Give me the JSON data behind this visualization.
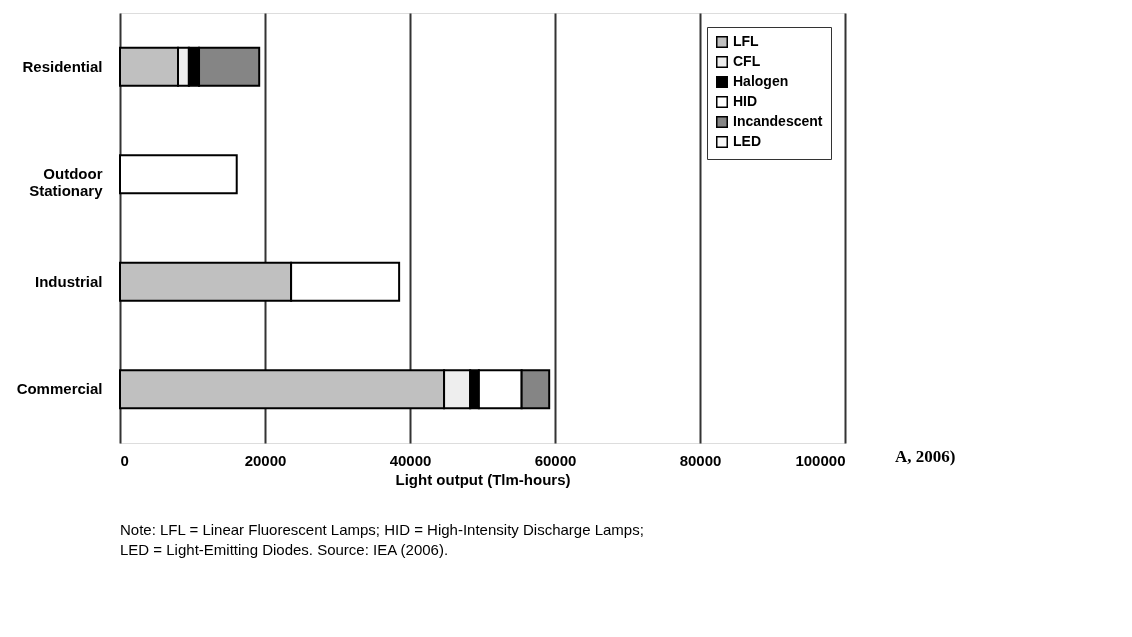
{
  "chart_data": {
    "type": "bar",
    "orientation": "horizontal",
    "stacked": true,
    "categories": [
      "Residential",
      "Outdoor Stationary",
      "Industrial",
      "Commercial"
    ],
    "series": [
      {
        "name": "LFL",
        "color": "#c0c0c0",
        "values": [
          8000,
          0,
          23600,
          44700
        ]
      },
      {
        "name": "CFL",
        "color": "#eeeeee",
        "values": [
          1500,
          0,
          0,
          3600
        ]
      },
      {
        "name": "Halogen",
        "color": "#000000",
        "values": [
          1400,
          0,
          0,
          1200
        ]
      },
      {
        "name": "HID",
        "color": "#ffffff",
        "values": [
          0,
          16100,
          14900,
          5900
        ]
      },
      {
        "name": "Incandescent",
        "color": "#858585",
        "values": [
          8300,
          0,
          0,
          3800
        ]
      },
      {
        "name": "LED",
        "color": "#f8f8f8",
        "values": [
          0,
          0,
          0,
          0
        ]
      }
    ],
    "xlabel": "Light output (Tlm-hours)",
    "xlim": [
      0,
      100000
    ],
    "xticks": [
      0,
      20000,
      40000,
      60000,
      80000,
      100000
    ],
    "grid": "x",
    "legend": "top right",
    "annotations": [
      "A, 2006)",
      "Note: LFL = Linear Fluorescent Lamps; HID = High-Intensity Discharge Lamps;",
      "LED = Light-Emitting Diodes.  Source: IEA (2006)."
    ]
  }
}
